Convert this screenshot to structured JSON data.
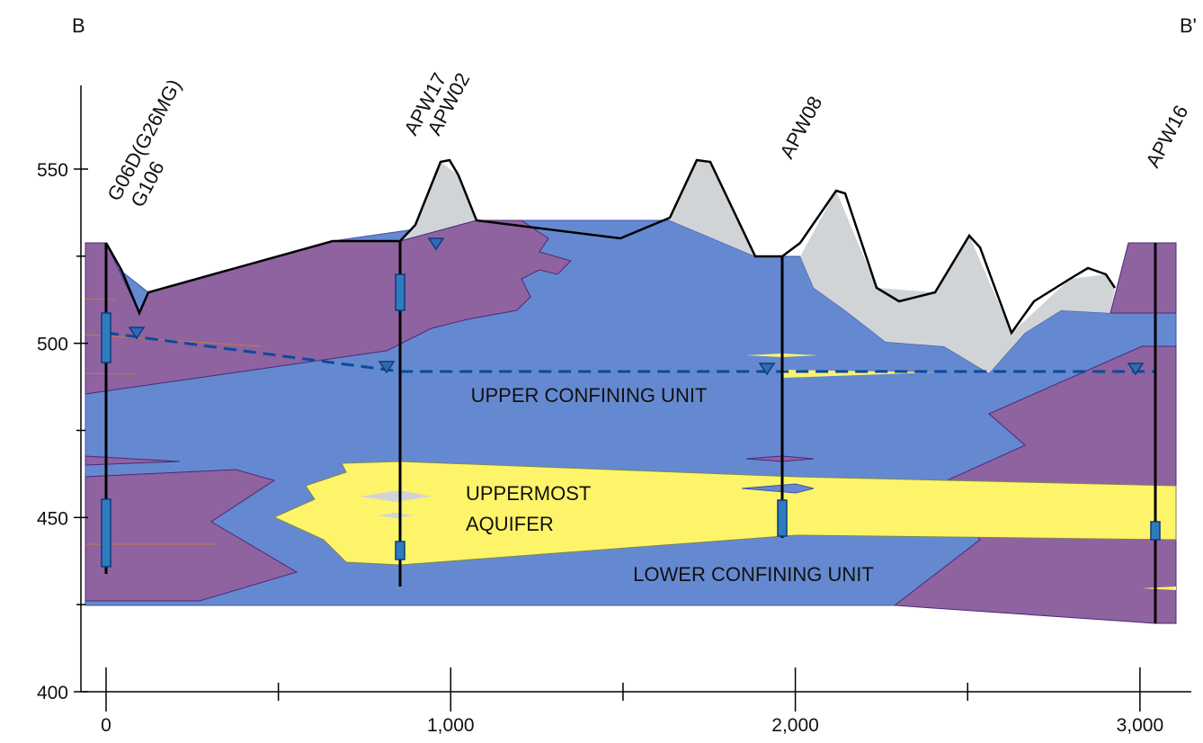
{
  "section": {
    "start": "B",
    "end": "B'"
  },
  "wells": [
    {
      "label": "G06D(G26MG)"
    },
    {
      "label": "G106"
    },
    {
      "label": "APW17"
    },
    {
      "label": "APW02"
    },
    {
      "label": "APW08"
    },
    {
      "label": "APW16"
    }
  ],
  "units": {
    "upper": "UPPER CONFINING UNIT",
    "aquifer_line1": "UPPERMOST",
    "aquifer_line2": "AQUIFER",
    "lower": "LOWER CONFINING UNIT"
  },
  "axes": {
    "x": {
      "lim": [
        -73,
        3149
      ],
      "ticks": [
        0,
        {
          "value": 1000,
          "label": "1,000"
        },
        {
          "value": 2000,
          "label": "2,000"
        },
        {
          "value": 3000,
          "label": "3,000"
        }
      ],
      "minor_ticks": [
        500,
        1500,
        2500
      ]
    },
    "y": {
      "lim": [
        400,
        574
      ],
      "ticks": [
        400,
        450,
        500,
        550
      ],
      "minor_ticks": [
        425,
        475,
        525
      ]
    }
  }
}
